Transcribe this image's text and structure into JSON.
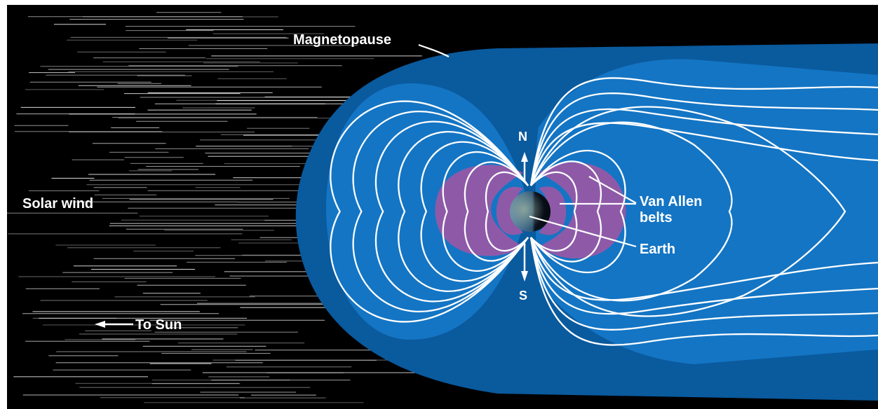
{
  "labels": {
    "magnetopause": "Magnetopause",
    "solar_wind": "Solar wind",
    "to_sun": "To Sun",
    "north": "N",
    "south": "S",
    "van_allen_line1": "Van Allen",
    "van_allen_line2": "belts",
    "earth": "Earth"
  },
  "colors": {
    "background": "#000000",
    "magnetosphere_outer": "#0a5a9e",
    "magnetosphere_inner": "#1475c4",
    "van_allen_belts": "#8e5aa8",
    "field_lines": "#ffffff"
  }
}
